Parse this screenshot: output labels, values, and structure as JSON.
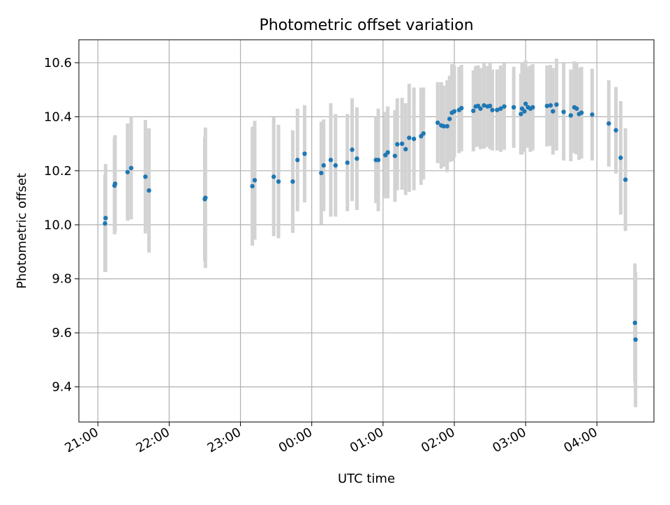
{
  "chart_data": {
    "type": "scatter",
    "title": "Photometric offset variation",
    "xlabel": "UTC time",
    "ylabel": "Photometric offset",
    "x_unit": "minutes",
    "x_ticks": [
      {
        "value": 0,
        "label": "21:00"
      },
      {
        "value": 60,
        "label": "22:00"
      },
      {
        "value": 120,
        "label": "23:00"
      },
      {
        "value": 180,
        "label": "00:00"
      },
      {
        "value": 240,
        "label": "01:00"
      },
      {
        "value": 300,
        "label": "02:00"
      },
      {
        "value": 360,
        "label": "03:00"
      },
      {
        "value": 420,
        "label": "04:00"
      }
    ],
    "y_ticks": [
      9.4,
      9.6,
      9.8,
      10.0,
      10.2,
      10.4,
      10.6
    ],
    "xlim": [
      -16,
      468
    ],
    "ylim": [
      9.27,
      10.685
    ],
    "grid": true,
    "colors": {
      "points": "#1f77b4",
      "errorbars": "#d3d3d3"
    },
    "series": [
      {
        "points": [
          {
            "x": 6,
            "y": 10.005,
            "err": 0.18
          },
          {
            "x": 6.5,
            "y": 10.025,
            "err": 0.2
          },
          {
            "x": 14,
            "y": 10.145,
            "err": 0.18
          },
          {
            "x": 14.5,
            "y": 10.152,
            "err": 0.18
          },
          {
            "x": 25,
            "y": 10.195,
            "err": 0.18
          },
          {
            "x": 28,
            "y": 10.21,
            "err": 0.19
          },
          {
            "x": 40,
            "y": 10.178,
            "err": 0.21
          },
          {
            "x": 43,
            "y": 10.127,
            "err": 0.23
          },
          {
            "x": 90,
            "y": 10.095,
            "err": 0.23
          },
          {
            "x": 90.5,
            "y": 10.1,
            "err": 0.26
          },
          {
            "x": 130,
            "y": 10.143,
            "err": 0.22
          },
          {
            "x": 132,
            "y": 10.165,
            "err": 0.22
          },
          {
            "x": 148,
            "y": 10.178,
            "err": 0.22
          },
          {
            "x": 152,
            "y": 10.16,
            "err": 0.21
          },
          {
            "x": 164,
            "y": 10.16,
            "err": 0.19
          },
          {
            "x": 168,
            "y": 10.24,
            "err": 0.19
          },
          {
            "x": 174,
            "y": 10.263,
            "err": 0.18
          },
          {
            "x": 188,
            "y": 10.192,
            "err": 0.19
          },
          {
            "x": 190,
            "y": 10.22,
            "err": 0.17
          },
          {
            "x": 196,
            "y": 10.24,
            "err": 0.21
          },
          {
            "x": 200,
            "y": 10.22,
            "err": 0.19
          },
          {
            "x": 210,
            "y": 10.23,
            "err": 0.18
          },
          {
            "x": 214,
            "y": 10.278,
            "err": 0.19
          },
          {
            "x": 218,
            "y": 10.245,
            "err": 0.19
          },
          {
            "x": 234,
            "y": 10.24,
            "err": 0.16
          },
          {
            "x": 236,
            "y": 10.24,
            "err": 0.19
          },
          {
            "x": 242,
            "y": 10.258,
            "err": 0.16
          },
          {
            "x": 244,
            "y": 10.268,
            "err": 0.17
          },
          {
            "x": 250,
            "y": 10.255,
            "err": 0.17
          },
          {
            "x": 252,
            "y": 10.298,
            "err": 0.17
          },
          {
            "x": 256,
            "y": 10.3,
            "err": 0.17
          },
          {
            "x": 259,
            "y": 10.28,
            "err": 0.17
          },
          {
            "x": 262,
            "y": 10.322,
            "err": 0.2
          },
          {
            "x": 266,
            "y": 10.318,
            "err": 0.19
          },
          {
            "x": 272,
            "y": 10.328,
            "err": 0.18
          },
          {
            "x": 274,
            "y": 10.338,
            "err": 0.17
          },
          {
            "x": 286,
            "y": 10.378,
            "err": 0.15
          },
          {
            "x": 289,
            "y": 10.368,
            "err": 0.16
          },
          {
            "x": 291,
            "y": 10.365,
            "err": 0.15
          },
          {
            "x": 294,
            "y": 10.365,
            "err": 0.17
          },
          {
            "x": 296,
            "y": 10.392,
            "err": 0.16
          },
          {
            "x": 298,
            "y": 10.415,
            "err": 0.18
          },
          {
            "x": 300,
            "y": 10.42,
            "err": 0.17
          },
          {
            "x": 304,
            "y": 10.425,
            "err": 0.16
          },
          {
            "x": 306,
            "y": 10.432,
            "err": 0.16
          },
          {
            "x": 316,
            "y": 10.422,
            "err": 0.15
          },
          {
            "x": 318,
            "y": 10.438,
            "err": 0.15
          },
          {
            "x": 320,
            "y": 10.44,
            "err": 0.15
          },
          {
            "x": 322,
            "y": 10.43,
            "err": 0.15
          },
          {
            "x": 325,
            "y": 10.442,
            "err": 0.16
          },
          {
            "x": 328,
            "y": 10.438,
            "err": 0.15
          },
          {
            "x": 330,
            "y": 10.44,
            "err": 0.16
          },
          {
            "x": 332,
            "y": 10.425,
            "err": 0.15
          },
          {
            "x": 336,
            "y": 10.425,
            "err": 0.15
          },
          {
            "x": 339,
            "y": 10.43,
            "err": 0.16
          },
          {
            "x": 342,
            "y": 10.438,
            "err": 0.16
          },
          {
            "x": 350,
            "y": 10.435,
            "err": 0.15
          },
          {
            "x": 356,
            "y": 10.41,
            "err": 0.15
          },
          {
            "x": 357,
            "y": 10.43,
            "err": 0.17
          },
          {
            "x": 359,
            "y": 10.42,
            "err": 0.15
          },
          {
            "x": 360,
            "y": 10.448,
            "err": 0.16
          },
          {
            "x": 362,
            "y": 10.435,
            "err": 0.15
          },
          {
            "x": 364,
            "y": 10.43,
            "err": 0.16
          },
          {
            "x": 366,
            "y": 10.435,
            "err": 0.16
          },
          {
            "x": 378,
            "y": 10.44,
            "err": 0.15
          },
          {
            "x": 381,
            "y": 10.442,
            "err": 0.15
          },
          {
            "x": 383,
            "y": 10.42,
            "err": 0.16
          },
          {
            "x": 386,
            "y": 10.445,
            "err": 0.17
          },
          {
            "x": 392,
            "y": 10.418,
            "err": 0.18
          },
          {
            "x": 398,
            "y": 10.405,
            "err": 0.17
          },
          {
            "x": 401,
            "y": 10.435,
            "err": 0.17
          },
          {
            "x": 403,
            "y": 10.43,
            "err": 0.17
          },
          {
            "x": 405,
            "y": 10.41,
            "err": 0.17
          },
          {
            "x": 407,
            "y": 10.415,
            "err": 0.17
          },
          {
            "x": 416,
            "y": 10.408,
            "err": 0.17
          },
          {
            "x": 430,
            "y": 10.375,
            "err": 0.16
          },
          {
            "x": 436,
            "y": 10.35,
            "err": 0.16
          },
          {
            "x": 440,
            "y": 10.248,
            "err": 0.21
          },
          {
            "x": 444,
            "y": 10.167,
            "err": 0.19
          },
          {
            "x": 452,
            "y": 9.637,
            "err": 0.22
          },
          {
            "x": 452.5,
            "y": 9.575,
            "err": 0.25
          }
        ]
      }
    ]
  }
}
